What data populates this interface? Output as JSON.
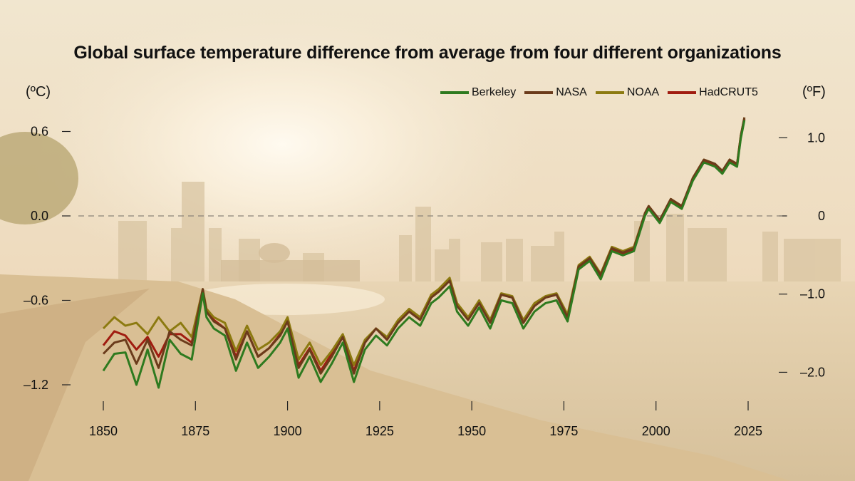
{
  "chart_data": {
    "type": "line",
    "title": "Global surface temperature difference from average from four different organizations",
    "ylabel_left": "(ºC)",
    "ylabel_right": "(ºF)",
    "xlim": [
      1850,
      2025
    ],
    "ylim": [
      -1.4,
      0.75
    ],
    "x_ticks": [
      "1850",
      "1875",
      "1900",
      "1925",
      "1950",
      "1975",
      "2000",
      "2025"
    ],
    "y_ticks_left": [
      {
        "value": 0.6,
        "label": "0.6"
      },
      {
        "value": 0.0,
        "label": "0.0"
      },
      {
        "value": -0.6,
        "label": "–0.6"
      },
      {
        "value": -1.2,
        "label": "–1.2"
      }
    ],
    "y_ticks_right": [
      {
        "value_f": 1.0,
        "label": "1.0"
      },
      {
        "value_f": 0.0,
        "label": "0"
      },
      {
        "value_f": -1.0,
        "label": "–1.0"
      },
      {
        "value_f": -2.0,
        "label": "–2.0"
      }
    ],
    "reference_line": 0.0,
    "grid": false,
    "legend_position": "top-right",
    "x": [
      1850,
      1853,
      1856,
      1859,
      1862,
      1865,
      1868,
      1871,
      1874,
      1877,
      1878,
      1880,
      1883,
      1886,
      1889,
      1892,
      1895,
      1898,
      1900,
      1903,
      1906,
      1909,
      1912,
      1915,
      1918,
      1921,
      1924,
      1927,
      1930,
      1933,
      1936,
      1939,
      1941,
      1944,
      1946,
      1949,
      1952,
      1955,
      1958,
      1961,
      1964,
      1967,
      1970,
      1973,
      1976,
      1979,
      1982,
      1985,
      1988,
      1991,
      1994,
      1997,
      1998,
      2001,
      2004,
      2007,
      2010,
      2013,
      2016,
      2018,
      2020,
      2022,
      2023,
      2024
    ],
    "series": [
      {
        "name": "Berkeley",
        "color": "#2e7a1f",
        "values": [
          -1.1,
          -0.98,
          -0.97,
          -1.2,
          -0.95,
          -1.22,
          -0.88,
          -0.98,
          -1.02,
          -0.55,
          -0.72,
          -0.8,
          -0.85,
          -1.1,
          -0.9,
          -1.08,
          -1.0,
          -0.9,
          -0.8,
          -1.15,
          -1.0,
          -1.18,
          -1.05,
          -0.9,
          -1.18,
          -0.95,
          -0.85,
          -0.92,
          -0.8,
          -0.72,
          -0.78,
          -0.62,
          -0.58,
          -0.5,
          -0.68,
          -0.78,
          -0.65,
          -0.8,
          -0.6,
          -0.62,
          -0.8,
          -0.68,
          -0.62,
          -0.6,
          -0.75,
          -0.38,
          -0.32,
          -0.45,
          -0.25,
          -0.28,
          -0.25,
          0.0,
          0.05,
          -0.05,
          0.1,
          0.05,
          0.25,
          0.38,
          0.35,
          0.3,
          0.38,
          0.35,
          0.55,
          0.68
        ]
      },
      {
        "name": "NASA",
        "color": "#6b3b1b",
        "values": [
          -0.98,
          -0.9,
          -0.88,
          -1.05,
          -0.88,
          -1.08,
          -0.82,
          -0.88,
          -0.92,
          -0.52,
          -0.68,
          -0.75,
          -0.8,
          -1.02,
          -0.82,
          -1.0,
          -0.94,
          -0.85,
          -0.75,
          -1.08,
          -0.95,
          -1.12,
          -1.0,
          -0.86,
          -1.12,
          -0.9,
          -0.8,
          -0.88,
          -0.76,
          -0.68,
          -0.74,
          -0.58,
          -0.54,
          -0.46,
          -0.64,
          -0.74,
          -0.62,
          -0.76,
          -0.56,
          -0.58,
          -0.76,
          -0.64,
          -0.58,
          -0.56,
          -0.72,
          -0.36,
          -0.3,
          -0.42,
          -0.23,
          -0.26,
          -0.23,
          0.02,
          0.07,
          -0.03,
          0.12,
          0.07,
          0.27,
          0.4,
          0.37,
          0.32,
          0.4,
          0.37,
          0.57,
          0.7
        ]
      },
      {
        "name": "NOAA",
        "color": "#8c7a10",
        "values": [
          -0.8,
          -0.72,
          -0.78,
          -0.76,
          -0.84,
          -0.72,
          -0.82,
          -0.76,
          -0.86,
          -0.52,
          -0.66,
          -0.72,
          -0.76,
          -0.96,
          -0.78,
          -0.95,
          -0.9,
          -0.82,
          -0.72,
          -1.02,
          -0.9,
          -1.06,
          -0.96,
          -0.84,
          -1.06,
          -0.88,
          -0.8,
          -0.86,
          -0.74,
          -0.66,
          -0.72,
          -0.56,
          -0.52,
          -0.44,
          -0.62,
          -0.72,
          -0.6,
          -0.74,
          -0.55,
          -0.57,
          -0.74,
          -0.62,
          -0.57,
          -0.55,
          -0.7,
          -0.35,
          -0.29,
          -0.41,
          -0.22,
          -0.25,
          -0.22,
          0.02,
          0.07,
          -0.03,
          0.12,
          0.07,
          0.27,
          0.4,
          0.37,
          0.32,
          0.4,
          0.37,
          0.57,
          0.7
        ]
      },
      {
        "name": "HadCRUT5",
        "color": "#a01c10",
        "values": [
          -0.92,
          -0.82,
          -0.85,
          -0.95,
          -0.86,
          -1.0,
          -0.84,
          -0.84,
          -0.9,
          -0.54,
          -0.68,
          -0.74,
          -0.8,
          -1.0,
          -0.82,
          -1.0,
          -0.94,
          -0.84,
          -0.74,
          -1.06,
          -0.94,
          -1.1,
          -0.98,
          -0.86,
          -1.1,
          -0.9,
          -0.8,
          -0.88,
          -0.75,
          -0.67,
          -0.73,
          -0.56,
          -0.53,
          -0.45,
          -0.63,
          -0.73,
          -0.61,
          -0.75,
          -0.56,
          -0.58,
          -0.76,
          -0.64,
          -0.58,
          -0.56,
          -0.72,
          -0.36,
          -0.31,
          -0.43,
          -0.24,
          -0.27,
          -0.24,
          0.01,
          0.06,
          -0.04,
          0.11,
          0.06,
          0.26,
          0.39,
          0.36,
          0.31,
          0.39,
          0.36,
          0.56,
          0.69
        ]
      }
    ]
  }
}
